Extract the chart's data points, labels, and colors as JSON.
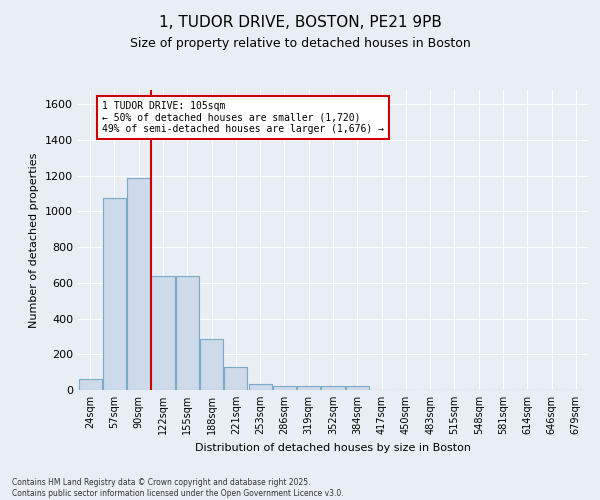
{
  "title_line1": "1, TUDOR DRIVE, BOSTON, PE21 9PB",
  "title_line2": "Size of property relative to detached houses in Boston",
  "xlabel": "Distribution of detached houses by size in Boston",
  "ylabel": "Number of detached properties",
  "bar_labels": [
    "24sqm",
    "57sqm",
    "90sqm",
    "122sqm",
    "155sqm",
    "188sqm",
    "221sqm",
    "253sqm",
    "286sqm",
    "319sqm",
    "352sqm",
    "384sqm",
    "417sqm",
    "450sqm",
    "483sqm",
    "515sqm",
    "548sqm",
    "581sqm",
    "614sqm",
    "646sqm",
    "679sqm"
  ],
  "bar_heights": [
    60,
    1075,
    1185,
    640,
    640,
    285,
    130,
    35,
    20,
    20,
    20,
    20,
    0,
    0,
    0,
    0,
    0,
    0,
    0,
    0,
    0
  ],
  "bar_color": "#ccdaea",
  "bar_edge_color": "#7aaac8",
  "red_line_x": 2.5,
  "red_line_color": "#cc0000",
  "annotation_line1": "1 TUDOR DRIVE: 105sqm",
  "annotation_line2": "← 50% of detached houses are smaller (1,720)",
  "annotation_line3": "49% of semi-detached houses are larger (1,676) →",
  "annotation_box_color": "#cc0000",
  "annotation_fill": "#ffffff",
  "ylim": [
    0,
    1680
  ],
  "yticks": [
    0,
    200,
    400,
    600,
    800,
    1000,
    1200,
    1400,
    1600
  ],
  "background_color": "#e8eef4",
  "grid_color": "#ffffff",
  "footer_line1": "Contains HM Land Registry data © Crown copyright and database right 2025.",
  "footer_line2": "Contains public sector information licensed under the Open Government Licence v3.0."
}
